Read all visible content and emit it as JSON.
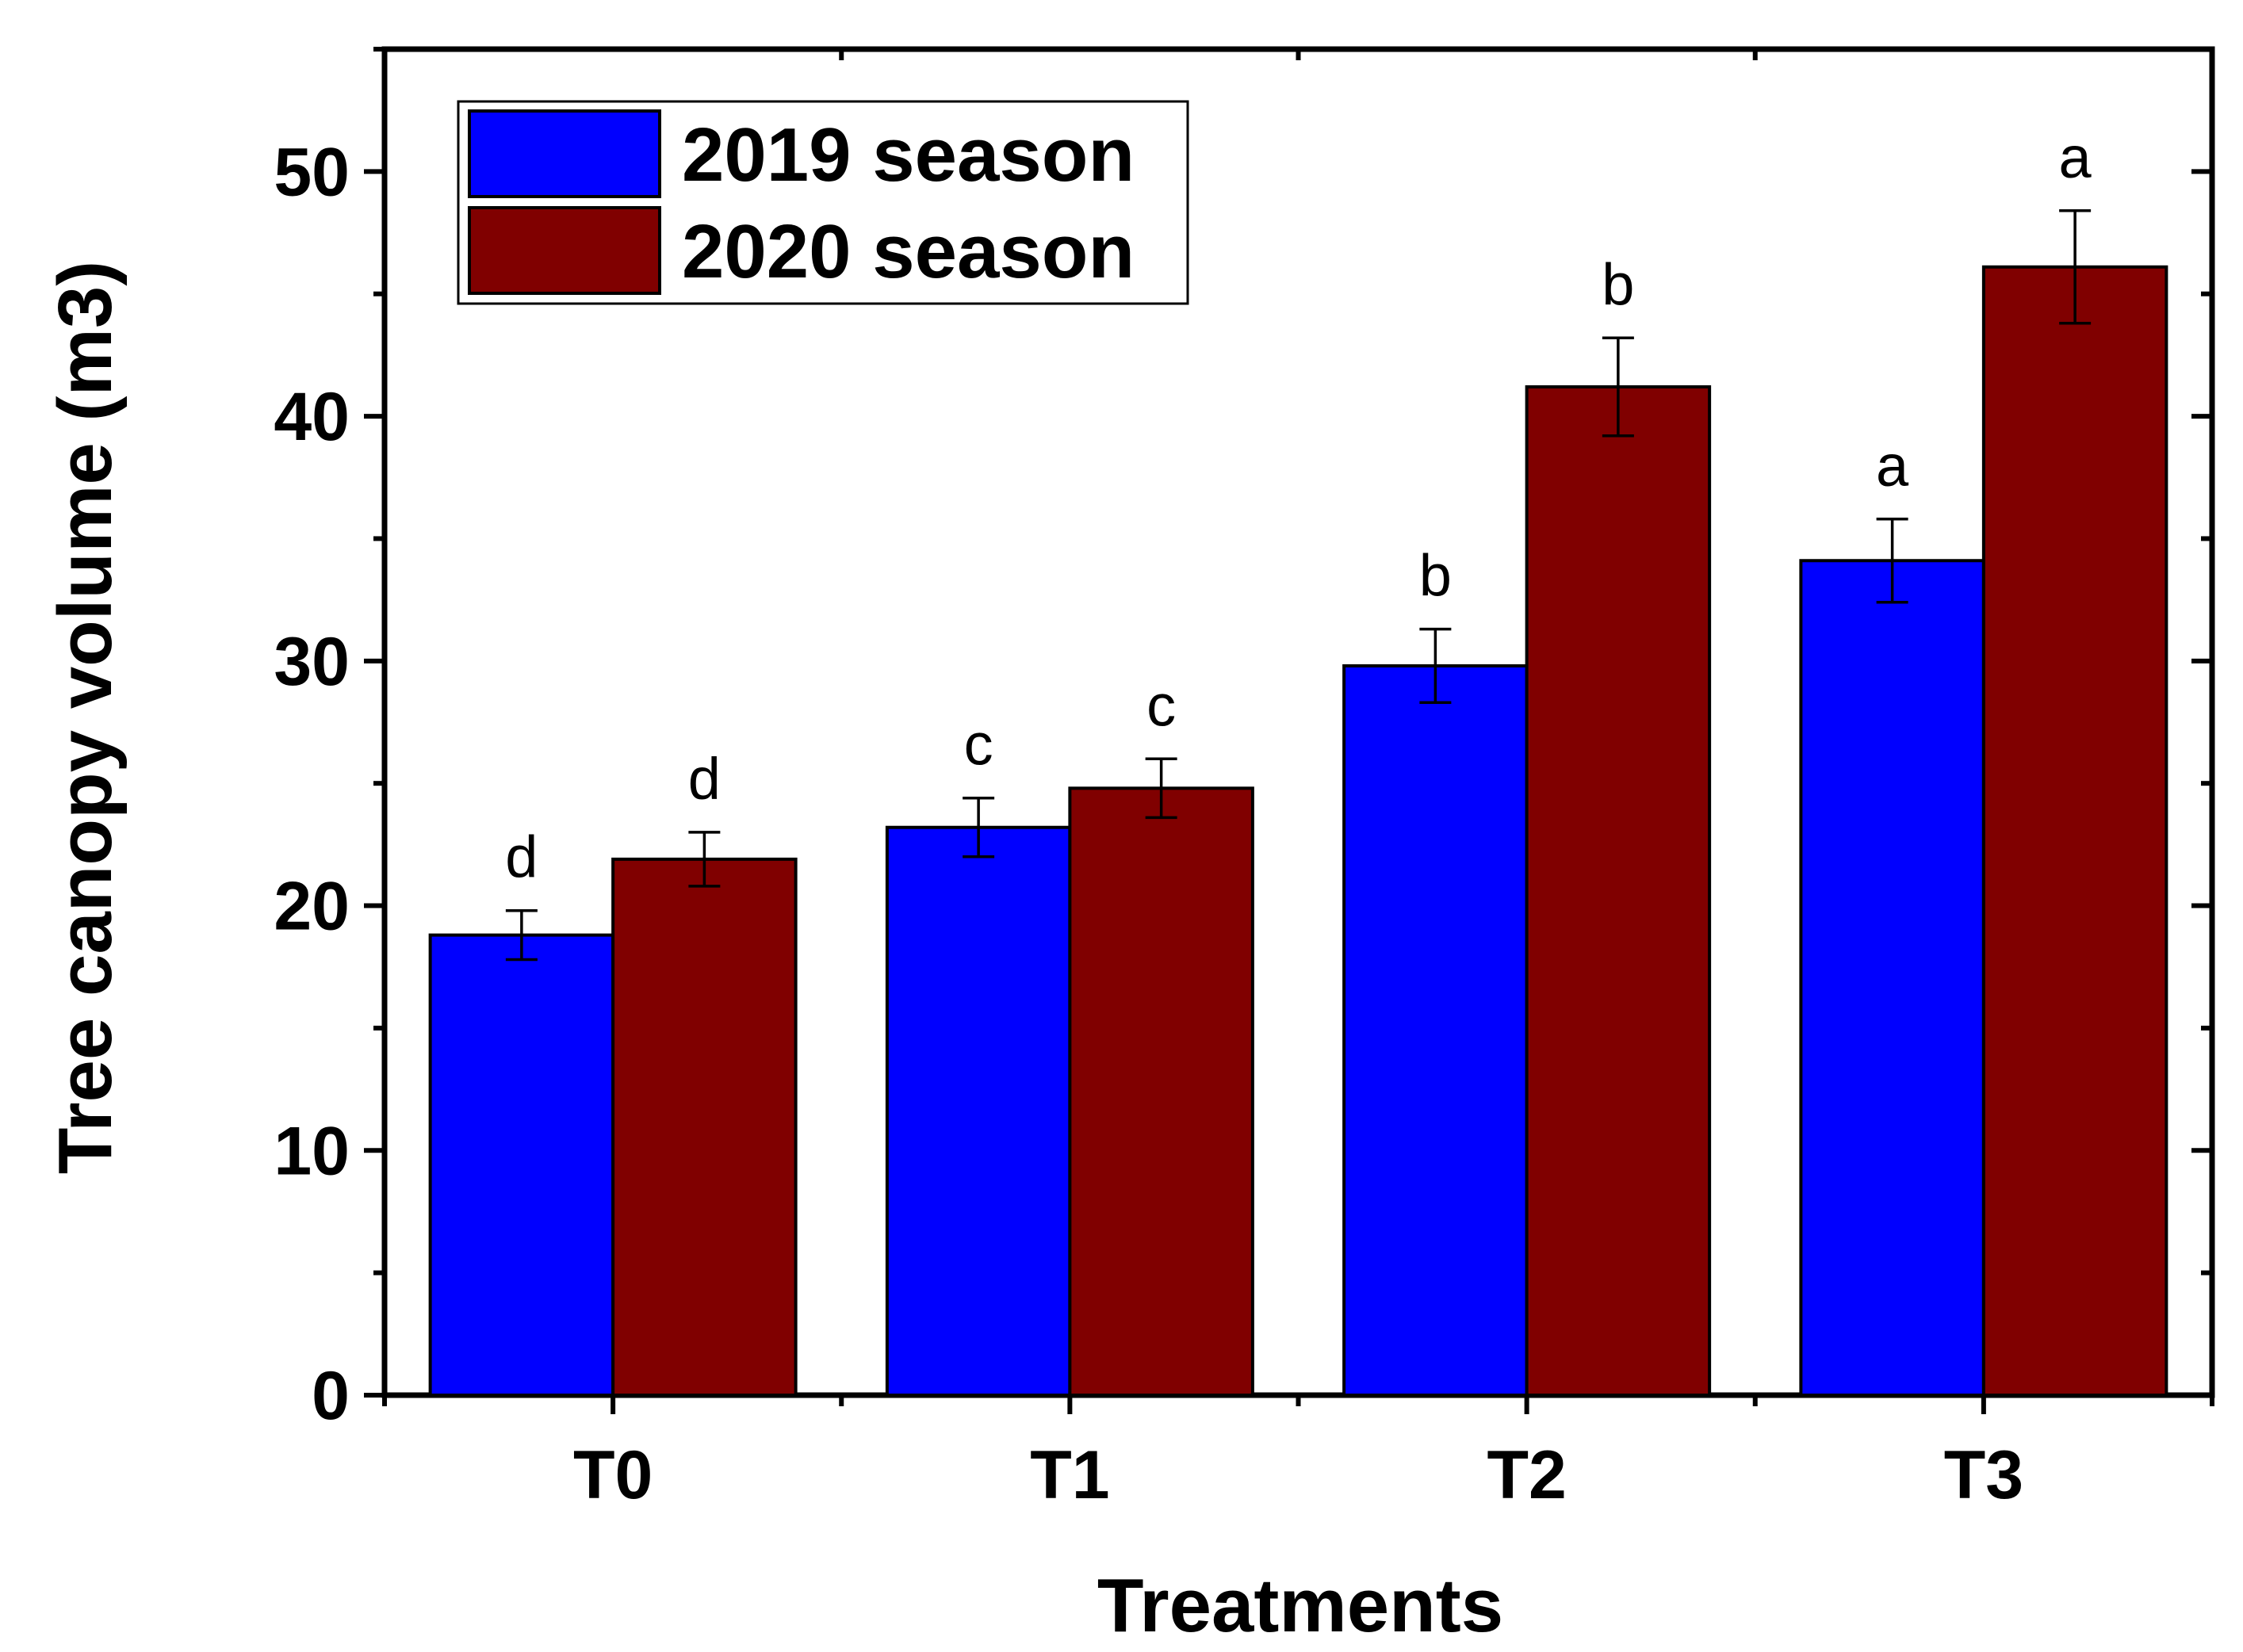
{
  "chart_data": {
    "type": "bar",
    "title": "",
    "xlabel": "Treatments",
    "ylabel": "Tree canopy volume (m3)",
    "ylim": [
      0,
      55
    ],
    "yticks": [
      0,
      10,
      20,
      30,
      40,
      50
    ],
    "categories": [
      "T0",
      "T1",
      "T2",
      "T3"
    ],
    "series": [
      {
        "name": "2019 season",
        "color": "#0000ff",
        "values": [
          18.8,
          23.2,
          29.8,
          34.1
        ],
        "errors": [
          1.0,
          1.2,
          1.5,
          1.7
        ],
        "letters": [
          "d",
          "c",
          "b",
          "a"
        ]
      },
      {
        "name": "2020 season",
        "color": "#800000",
        "values": [
          21.9,
          24.8,
          41.2,
          46.1
        ],
        "errors": [
          1.1,
          1.2,
          2.0,
          2.3
        ],
        "letters": [
          "d",
          "c",
          "b",
          "a"
        ]
      }
    ],
    "legend": {
      "position": "top-left"
    }
  }
}
